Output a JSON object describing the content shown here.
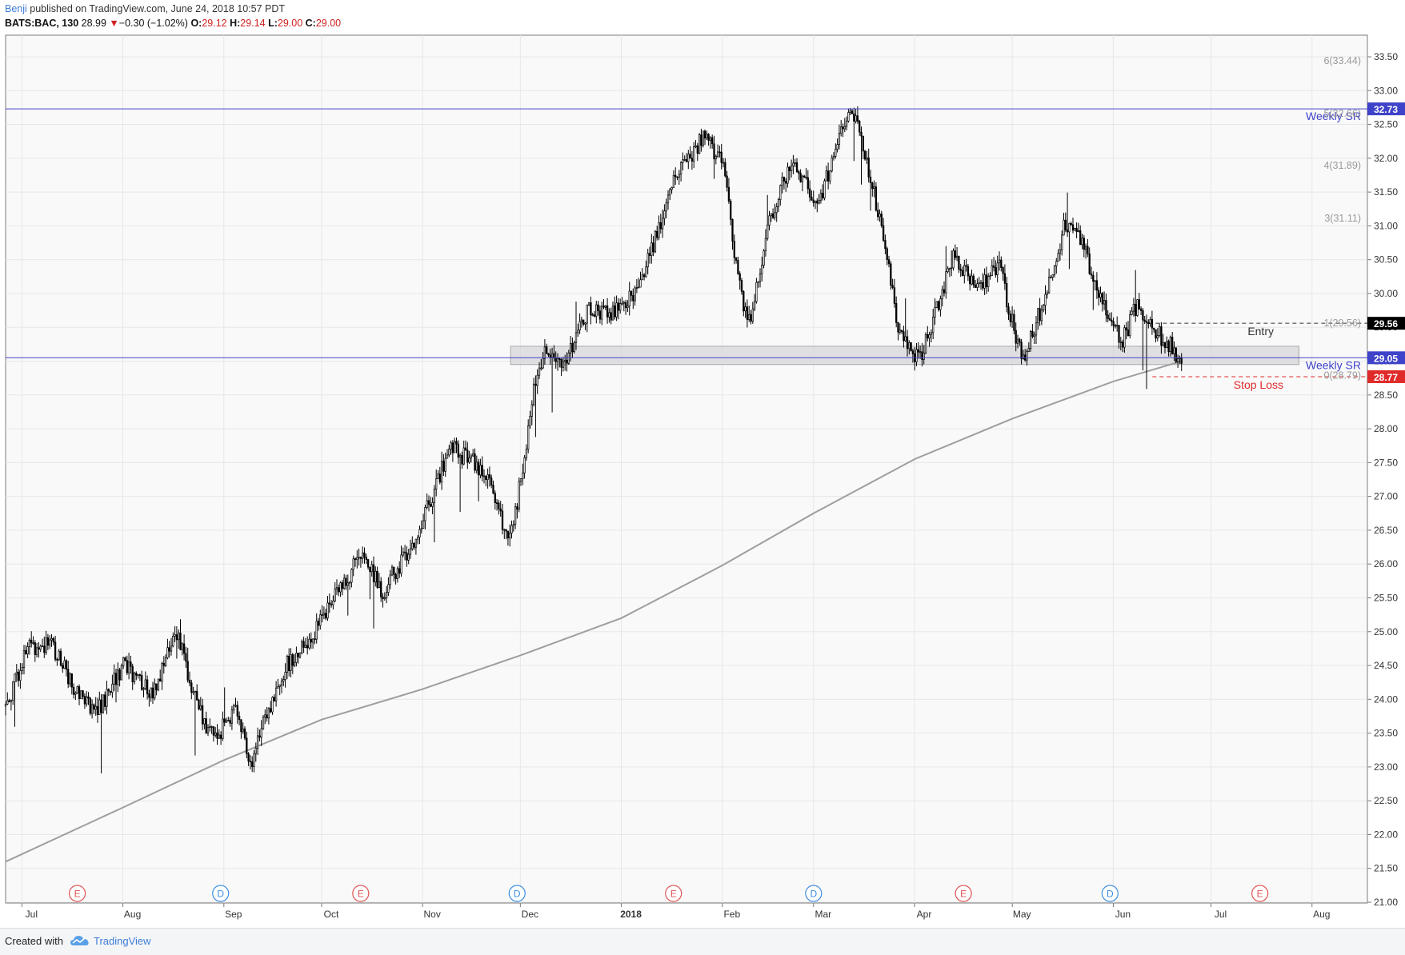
{
  "header": {
    "author": "Benji",
    "published": "published on TradingView.com, June 24, 2018 10:57 PDT",
    "symbol": "BATS:BAC, 130",
    "last": "28.99",
    "change_arrow": "▼",
    "change": "−0.30 (−1.02%)",
    "o_label": "O:",
    "o_value": "29.12",
    "h_label": "H:",
    "h_value": "29.14",
    "l_label": "L:",
    "l_value": "29.00",
    "c_label": "C:",
    "c_value": "29.00"
  },
  "footer": {
    "created_with": "Created with",
    "brand": "TradingView",
    "logo_icon": "tradingview-cloud-icon"
  },
  "colors": {
    "candle": "#000000",
    "moving_average": "#9e9e9e",
    "support_resistance": "#3f43c9",
    "stop_loss": "#e02a2a",
    "entry": "#333333",
    "zone_fill": "#d5d6da",
    "event_e": "#e05555",
    "event_d": "#3d8ee0"
  },
  "chart_data": {
    "type": "candlestick",
    "symbol": "BATS:BAC",
    "yticks": [
      "33.50",
      "33.00",
      "32.50",
      "32.00",
      "31.50",
      "31.00",
      "30.50",
      "30.00",
      "29.50",
      "29.00",
      "28.50",
      "28.00",
      "27.50",
      "27.00",
      "26.50",
      "26.00",
      "25.50",
      "25.00",
      "24.50",
      "24.00",
      "23.50",
      "23.00",
      "22.50",
      "22.00",
      "21.50",
      "21.00"
    ],
    "ylim": [
      21.0,
      33.5
    ],
    "x_labels": [
      "Jul",
      "Aug",
      "Sep",
      "Oct",
      "Nov",
      "Dec",
      "2018",
      "Feb",
      "Mar",
      "Apr",
      "May",
      "Jun",
      "Jul",
      "Aug"
    ],
    "x_label_dates": [
      "2017-07-01",
      "2017-08-01",
      "2017-09-01",
      "2017-10-01",
      "2017-11-01",
      "2017-12-01",
      "2018-01-01",
      "2018-02-01",
      "2018-03-01",
      "2018-04-01",
      "2018-05-01",
      "2018-06-01",
      "2018-07-01",
      "2018-08-01"
    ],
    "xlim": [
      "2017-06-26",
      "2018-08-18"
    ],
    "price_path": [
      [
        "2017-06-26",
        23.9
      ],
      [
        "2017-07-03",
        24.8
      ],
      [
        "2017-07-10",
        24.8
      ],
      [
        "2017-07-17",
        24.2
      ],
      [
        "2017-07-24",
        23.8
      ],
      [
        "2017-08-01",
        24.5
      ],
      [
        "2017-08-10",
        24.1
      ],
      [
        "2017-08-18",
        25.0
      ],
      [
        "2017-08-23",
        24.0
      ],
      [
        "2017-08-29",
        23.4
      ],
      [
        "2017-09-05",
        23.9
      ],
      [
        "2017-09-09",
        23.0
      ],
      [
        "2017-09-13",
        23.6
      ],
      [
        "2017-09-20",
        24.5
      ],
      [
        "2017-09-29",
        25.0
      ],
      [
        "2017-10-06",
        25.6
      ],
      [
        "2017-10-13",
        26.1
      ],
      [
        "2017-10-20",
        25.6
      ],
      [
        "2017-10-31",
        26.5
      ],
      [
        "2017-11-06",
        27.3
      ],
      [
        "2017-11-10",
        27.7
      ],
      [
        "2017-11-20",
        27.4
      ],
      [
        "2017-11-27",
        26.4
      ],
      [
        "2017-11-30",
        26.9
      ],
      [
        "2017-12-05",
        28.5
      ],
      [
        "2017-12-08",
        29.1
      ],
      [
        "2017-12-15",
        29.0
      ],
      [
        "2017-12-22",
        29.8
      ],
      [
        "2017-12-29",
        29.7
      ],
      [
        "2018-01-05",
        30.0
      ],
      [
        "2018-01-12",
        30.9
      ],
      [
        "2018-01-18",
        31.8
      ],
      [
        "2018-01-26",
        32.3
      ],
      [
        "2018-02-01",
        32.0
      ],
      [
        "2018-02-05",
        30.5
      ],
      [
        "2018-02-09",
        29.5
      ],
      [
        "2018-02-16",
        31.2
      ],
      [
        "2018-02-23",
        32.0
      ],
      [
        "2018-03-02",
        31.2
      ],
      [
        "2018-03-09",
        32.4
      ],
      [
        "2018-03-13",
        32.7
      ],
      [
        "2018-03-22",
        31.0
      ],
      [
        "2018-03-27",
        29.5
      ],
      [
        "2018-04-02",
        29.0
      ],
      [
        "2018-04-06",
        29.5
      ],
      [
        "2018-04-13",
        30.6
      ],
      [
        "2018-04-20",
        30.0
      ],
      [
        "2018-04-27",
        30.4
      ],
      [
        "2018-05-04",
        29.0
      ],
      [
        "2018-05-10",
        29.8
      ],
      [
        "2018-05-17",
        31.0
      ],
      [
        "2018-05-22",
        30.8
      ],
      [
        "2018-05-29",
        29.8
      ],
      [
        "2018-06-04",
        29.3
      ],
      [
        "2018-06-08",
        29.8
      ],
      [
        "2018-06-13",
        29.5
      ],
      [
        "2018-06-19",
        29.2
      ],
      [
        "2018-06-22",
        29.0
      ]
    ],
    "moving_average": [
      [
        "2017-06-26",
        21.6
      ],
      [
        "2017-08-01",
        22.4
      ],
      [
        "2017-09-01",
        23.1
      ],
      [
        "2017-10-01",
        23.7
      ],
      [
        "2017-11-01",
        24.15
      ],
      [
        "2017-12-01",
        24.65
      ],
      [
        "2018-01-01",
        25.2
      ],
      [
        "2018-02-01",
        25.98
      ],
      [
        "2018-03-01",
        26.75
      ],
      [
        "2018-04-01",
        27.55
      ],
      [
        "2018-05-01",
        28.15
      ],
      [
        "2018-06-01",
        28.7
      ],
      [
        "2018-06-22",
        29.0
      ]
    ],
    "weekly_sr": [
      {
        "label": "Weekly SR",
        "value": 32.73,
        "badge": "32.73"
      },
      {
        "label": "Weekly SR",
        "value": 29.05,
        "badge": "29.05"
      }
    ],
    "zone": {
      "from": "2017-11-28",
      "to": "2018-07-28",
      "low": 28.95,
      "high": 29.22
    },
    "entry": {
      "label": "Entry",
      "value": 29.56,
      "badge": "29.56",
      "from": "2018-06-14"
    },
    "stop_loss": {
      "label": "Stop Loss",
      "value": 28.77,
      "badge": "28.77",
      "from": "2018-06-13"
    },
    "fib_levels": [
      {
        "label": "6(33.44)",
        "value": 33.44
      },
      {
        "label": "5(32.66)",
        "value": 32.66
      },
      {
        "label": "4(31.89)",
        "value": 31.89
      },
      {
        "label": "3(31.11)",
        "value": 31.11
      },
      {
        "label": "1(29.56)",
        "value": 29.56
      },
      {
        "label": "0(28.79)",
        "value": 28.79
      }
    ],
    "events": [
      {
        "type": "E",
        "date": "2017-07-18"
      },
      {
        "type": "D",
        "date": "2017-08-31"
      },
      {
        "type": "E",
        "date": "2017-10-13"
      },
      {
        "type": "D",
        "date": "2017-11-30"
      },
      {
        "type": "E",
        "date": "2018-01-17"
      },
      {
        "type": "D",
        "date": "2018-03-01"
      },
      {
        "type": "E",
        "date": "2018-04-16"
      },
      {
        "type": "D",
        "date": "2018-05-31"
      },
      {
        "type": "E",
        "date": "2018-07-16"
      }
    ]
  }
}
